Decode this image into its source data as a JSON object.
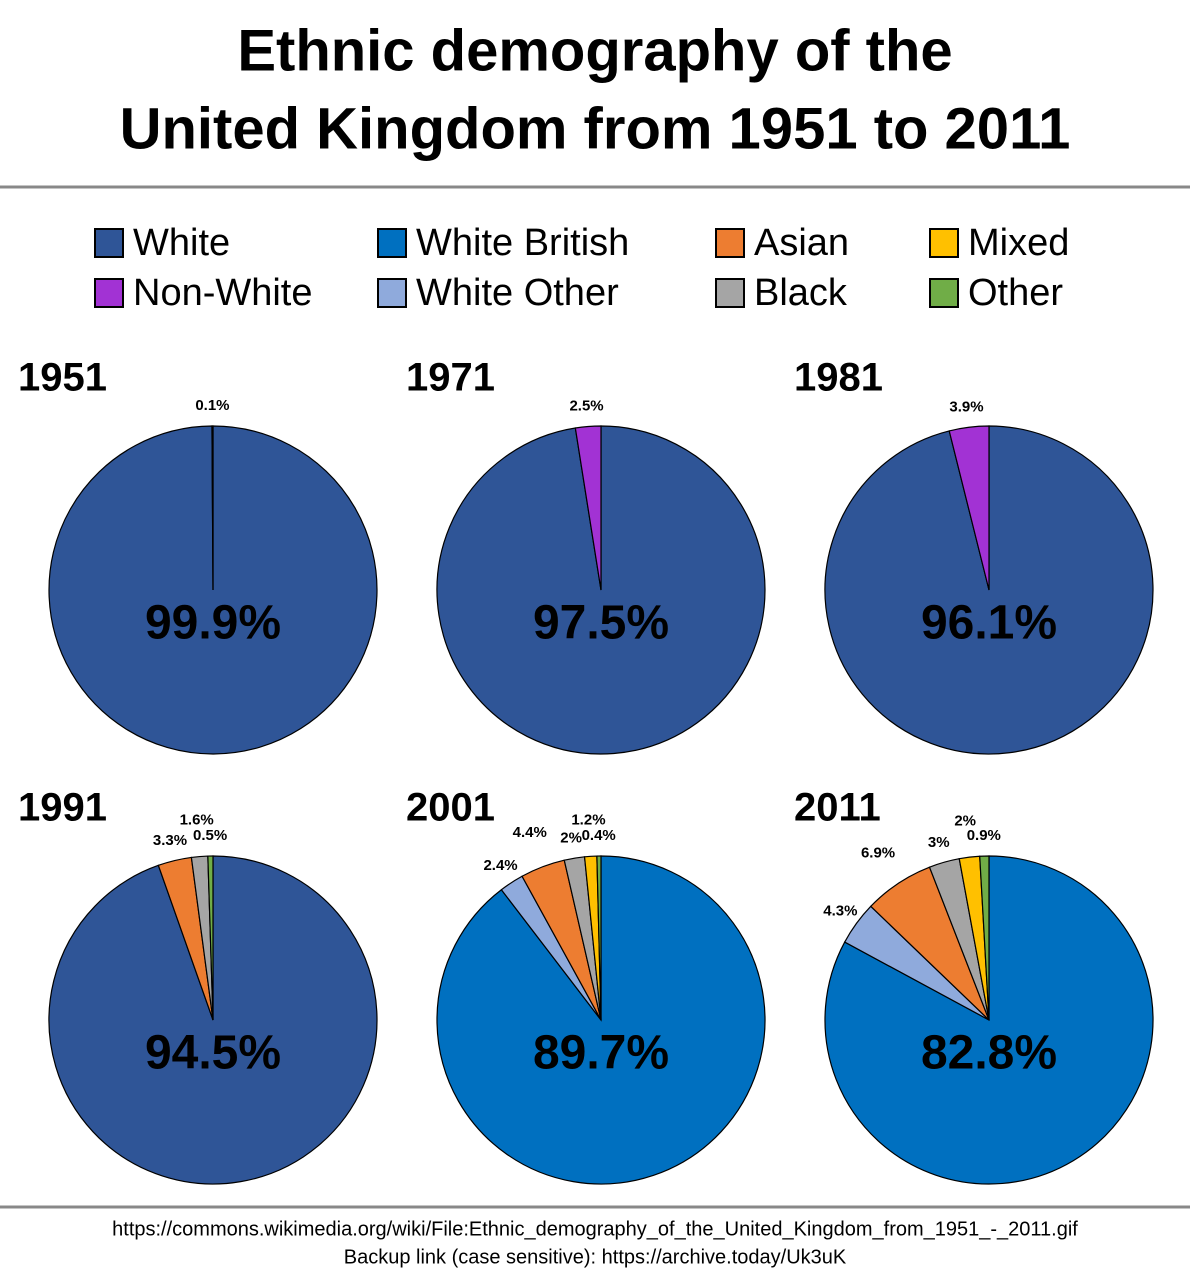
{
  "title": [
    "Ethnic demography of the",
    "United Kingdom from 1951 to 2011"
  ],
  "legend": [
    {
      "name": "White",
      "color": "#2f5597"
    },
    {
      "name": "Non-White",
      "color": "#a232d4"
    },
    {
      "name": "White British",
      "color": "#0070c0"
    },
    {
      "name": "White Other",
      "color": "#8faadc"
    },
    {
      "name": "Asian",
      "color": "#ed7d31"
    },
    {
      "name": "Black",
      "color": "#a5a5a5"
    },
    {
      "name": "Mixed",
      "color": "#ffc000"
    },
    {
      "name": "Other",
      "color": "#70ad47"
    }
  ],
  "chart_data": [
    {
      "type": "pie",
      "title": "1951",
      "values": [
        99.9,
        0.1
      ],
      "value_labels": [
        "99.9%",
        "0.1%"
      ],
      "colors": [
        "#2f5597",
        "#a232d4"
      ]
    },
    {
      "type": "pie",
      "title": "1971",
      "values": [
        97.5,
        2.5
      ],
      "value_labels": [
        "97.5%",
        "2.5%"
      ],
      "colors": [
        "#2f5597",
        "#a232d4"
      ]
    },
    {
      "type": "pie",
      "title": "1981",
      "values": [
        96.1,
        3.9
      ],
      "value_labels": [
        "96.1%",
        "3.9%"
      ],
      "colors": [
        "#2f5597",
        "#a232d4"
      ]
    },
    {
      "type": "pie",
      "title": "1991",
      "values": [
        94.5,
        3.3,
        1.6,
        0.5
      ],
      "value_labels": [
        "94.5%",
        "3.3%",
        "1.6%",
        "0.5%"
      ],
      "colors": [
        "#2f5597",
        "#ed7d31",
        "#a5a5a5",
        "#70ad47"
      ]
    },
    {
      "type": "pie",
      "title": "2001",
      "values": [
        89.7,
        2.4,
        4.4,
        2,
        1.2,
        0.4
      ],
      "value_labels": [
        "89.7%",
        "2.4%",
        "4.4%",
        "2%",
        "1.2%",
        "0.4%"
      ],
      "colors": [
        "#0070c0",
        "#8faadc",
        "#ed7d31",
        "#a5a5a5",
        "#ffc000",
        "#70ad47"
      ]
    },
    {
      "type": "pie",
      "title": "2011",
      "values": [
        82.8,
        4.3,
        6.9,
        3,
        2,
        0.9
      ],
      "value_labels": [
        "82.8%",
        "4.3%",
        "6.9%",
        "3%",
        "2%",
        "0.9%"
      ],
      "colors": [
        "#0070c0",
        "#8faadc",
        "#ed7d31",
        "#a5a5a5",
        "#ffc000",
        "#70ad47"
      ]
    }
  ],
  "source": [
    "https://commons.wikimedia.org/wiki/File:Ethnic_demography_of_the_United_Kingdom_from_1951_-_2011.gif",
    "Backup link (case sensitive): https://archive.today/Uk3uK"
  ]
}
